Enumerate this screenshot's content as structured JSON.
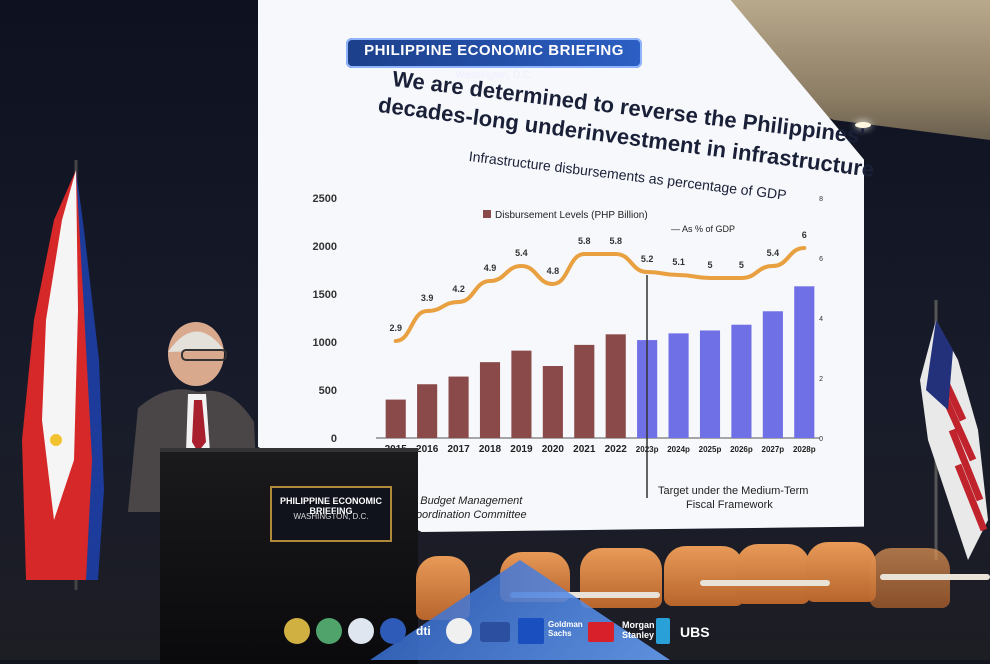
{
  "banner": {
    "title": "PHILIPPINE ECONOMIC BRIEFING",
    "subtitle": "Washington, D.C."
  },
  "slide": {
    "title_line1": "We are determined to reverse the Philippines'",
    "title_line2": "decades-long underinvestment in infrastructure",
    "subtitle": "Infrastructure disbursements as percentage of GDP",
    "source": [
      "of Budget Management",
      "Coordination Committee"
    ],
    "target_note": [
      "Target under the Medium-Term",
      "Fiscal Framework"
    ]
  },
  "chart_data": {
    "type": "bar",
    "categories": [
      "2015",
      "2016",
      "2017",
      "2018",
      "2019",
      "2020",
      "2021",
      "2022",
      "2023p",
      "2024p",
      "2025p",
      "2026p",
      "2027p",
      "2028p"
    ],
    "series": [
      {
        "name": "Disbursement Levels (PHP Billion)",
        "values": [
          400,
          560,
          640,
          790,
          910,
          750,
          970,
          1080,
          1020,
          1090,
          1120,
          1180,
          1320,
          1580
        ]
      },
      {
        "name": "As % of GDP",
        "values": [
          2.9,
          3.9,
          4.2,
          4.9,
          5.4,
          4.8,
          5.8,
          5.8,
          5.2,
          5.1,
          5,
          5,
          5.4,
          6
        ]
      }
    ],
    "y_left_ticks": [
      "0",
      "500",
      "1000",
      "1500",
      "2000",
      "2500"
    ],
    "y_right_ticks": [
      "0",
      "2",
      "4",
      "6",
      "8"
    ],
    "ylim": [
      0,
      2500
    ],
    "y2lim": [
      0,
      8
    ],
    "colors": {
      "actual": "#8a4a4a",
      "target": "#6f6fe6",
      "line": "#e8a040"
    }
  },
  "podium_sign": {
    "title": "PHILIPPINE ECONOMIC BRIEFING",
    "subtitle": "WASHINGTON, D.C."
  },
  "sponsors": [
    "dti",
    "Goldman Sachs",
    "Morgan Stanley",
    "UBS"
  ]
}
